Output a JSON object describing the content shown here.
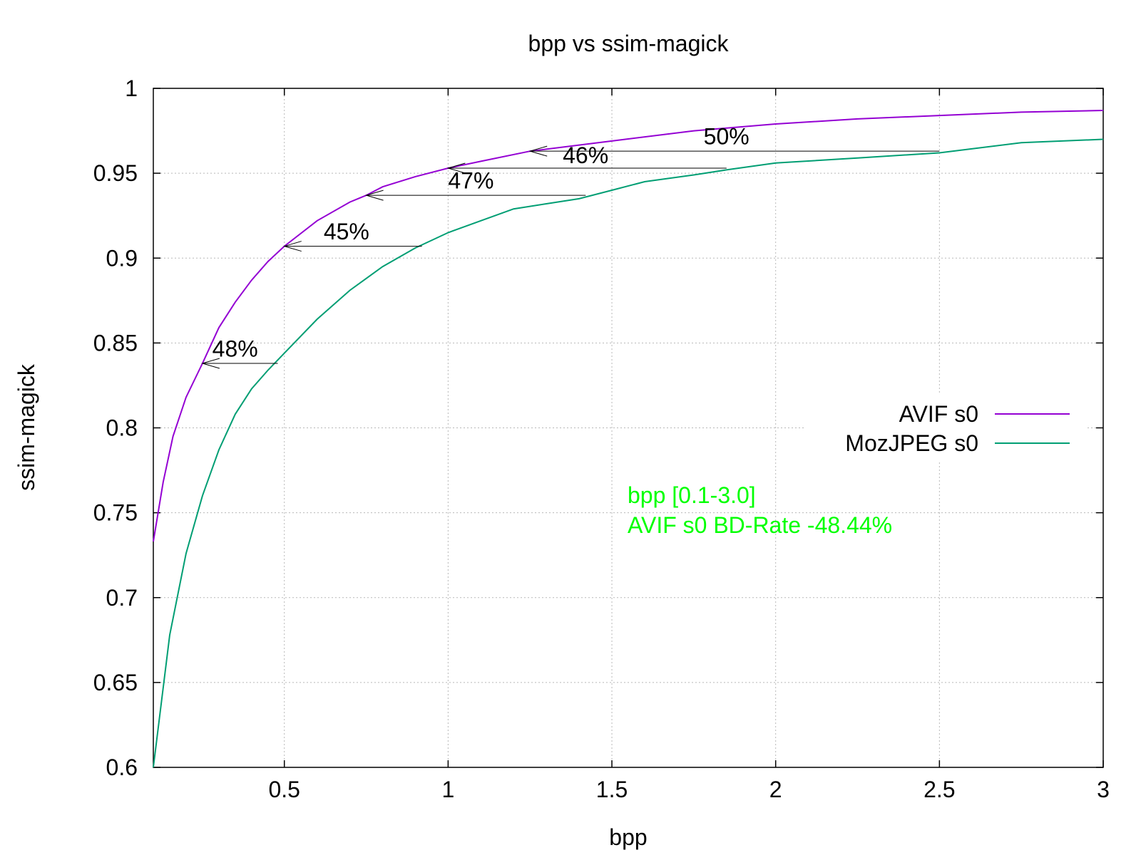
{
  "chart_data": {
    "type": "line",
    "title": "bpp vs ssim-magick",
    "xlabel": "bpp",
    "ylabel": "ssim-magick",
    "xlim": [
      0.1,
      3.0
    ],
    "ylim": [
      0.6,
      1.0
    ],
    "xticks": [
      0.5,
      1,
      1.5,
      2,
      2.5,
      3
    ],
    "xtick_labels": [
      "0.5",
      "1",
      "1.5",
      "2",
      "2.5",
      "3"
    ],
    "yticks": [
      0.6,
      0.65,
      0.7,
      0.75,
      0.8,
      0.85,
      0.9,
      0.95,
      1.0
    ],
    "ytick_labels": [
      "0.6",
      "0.65",
      "0.7",
      "0.75",
      "0.8",
      "0.85",
      "0.9",
      "0.95",
      "1"
    ],
    "grid": true,
    "legend_position": "right",
    "series": [
      {
        "name": "AVIF s0",
        "color": "#9400d3",
        "x": [
          0.1,
          0.13,
          0.16,
          0.2,
          0.25,
          0.3,
          0.35,
          0.4,
          0.45,
          0.5,
          0.6,
          0.7,
          0.75,
          0.8,
          0.9,
          1.0,
          1.1,
          1.25,
          1.5,
          1.75,
          2.0,
          2.25,
          2.5,
          2.75,
          3.0
        ],
        "y": [
          0.733,
          0.768,
          0.795,
          0.818,
          0.838,
          0.859,
          0.874,
          0.887,
          0.898,
          0.907,
          0.922,
          0.933,
          0.937,
          0.942,
          0.948,
          0.953,
          0.957,
          0.963,
          0.969,
          0.975,
          0.979,
          0.982,
          0.984,
          0.986,
          0.987
        ]
      },
      {
        "name": "MozJPEG s0",
        "color": "#009e73",
        "x": [
          0.1,
          0.15,
          0.2,
          0.25,
          0.3,
          0.35,
          0.4,
          0.45,
          0.5,
          0.6,
          0.7,
          0.8,
          0.9,
          1.0,
          1.1,
          1.2,
          1.3,
          1.4,
          1.5,
          1.6,
          1.75,
          1.85,
          2.0,
          2.25,
          2.5,
          2.75,
          3.0
        ],
        "y": [
          0.6,
          0.678,
          0.726,
          0.76,
          0.787,
          0.808,
          0.823,
          0.834,
          0.844,
          0.864,
          0.881,
          0.895,
          0.906,
          0.915,
          0.922,
          0.929,
          0.932,
          0.935,
          0.94,
          0.945,
          0.949,
          0.952,
          0.956,
          0.959,
          0.962,
          0.968,
          0.97
        ]
      }
    ],
    "annotations": [
      {
        "label": "48%",
        "y": 0.838,
        "x_from": 0.48,
        "x_to": 0.25,
        "label_x": 0.28,
        "label_y": 0.842
      },
      {
        "label": "45%",
        "y": 0.907,
        "x_from": 0.92,
        "x_to": 0.5,
        "label_x": 0.62,
        "label_y": 0.911
      },
      {
        "label": "47%",
        "y": 0.937,
        "x_from": 1.42,
        "x_to": 0.75,
        "label_x": 1.0,
        "label_y": 0.941
      },
      {
        "label": "46%",
        "y": 0.953,
        "x_from": 1.85,
        "x_to": 1.0,
        "label_x": 1.35,
        "label_y": 0.956
      },
      {
        "label": "50%",
        "y": 0.963,
        "x_from": 2.5,
        "x_to": 1.25,
        "label_x": 1.78,
        "label_y": 0.967
      }
    ],
    "info_lines": [
      "bpp [0.1-3.0]",
      "AVIF s0 BD-Rate -48.44%"
    ],
    "info_color": "#00ff00"
  }
}
